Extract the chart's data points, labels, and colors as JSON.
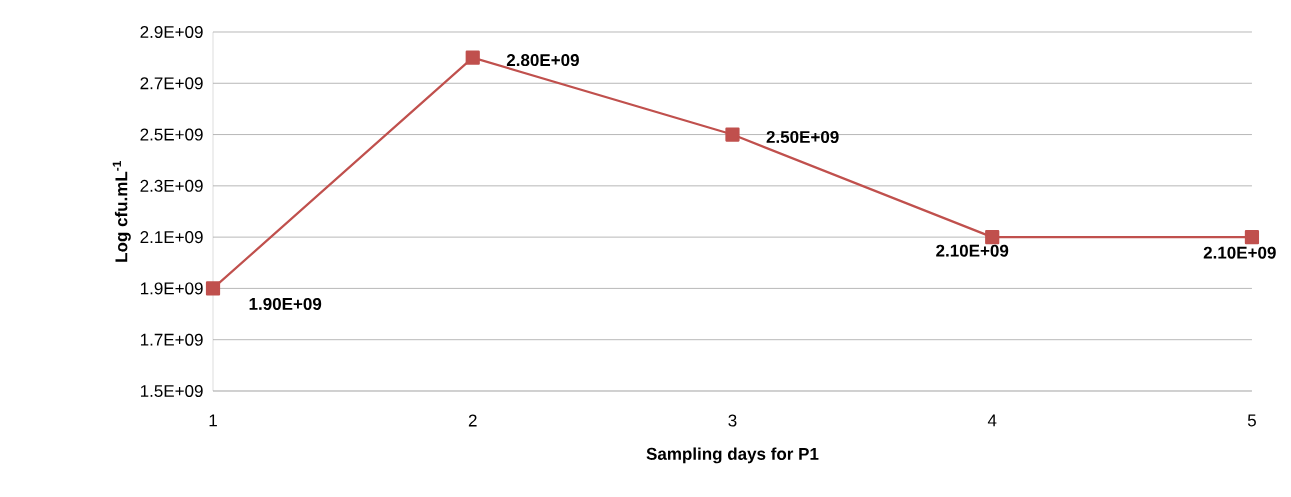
{
  "chart_data": {
    "type": "line",
    "xlabel": "Sampling days for P1",
    "ylabel": "Log cfu.mL$^{-1}$",
    "x": [
      1,
      2,
      3,
      4,
      5
    ],
    "series": [
      {
        "color": "#c0504d",
        "values": [
          1900000000,
          2800000000,
          2500000000,
          2100000000,
          2100000000
        ],
        "value_labels": [
          "1.90E+09",
          "2.80E+09",
          "2.50E+09",
          "2.10E+09",
          "2.10E+09"
        ]
      }
    ],
    "xlim": [
      1,
      5
    ],
    "xticks": [
      1,
      2,
      3,
      4,
      5
    ],
    "ylim": [
      1500000000,
      2900000000
    ],
    "yticks": [
      {
        "value": 1500000000,
        "label": "1.5E+09"
      },
      {
        "value": 1700000000,
        "label": "1.7E+09"
      },
      {
        "value": 1900000000,
        "label": "1.9E+09"
      },
      {
        "value": 2100000000,
        "label": "2.1E+09"
      },
      {
        "value": 2300000000,
        "label": "2.3E+09"
      },
      {
        "value": 2500000000,
        "label": "2.5E+09"
      },
      {
        "value": 2700000000,
        "label": "2.7E+09"
      },
      {
        "value": 2900000000,
        "label": "2.9E+09"
      }
    ],
    "grid": "y",
    "marker": "square",
    "line_style": "solid"
  }
}
